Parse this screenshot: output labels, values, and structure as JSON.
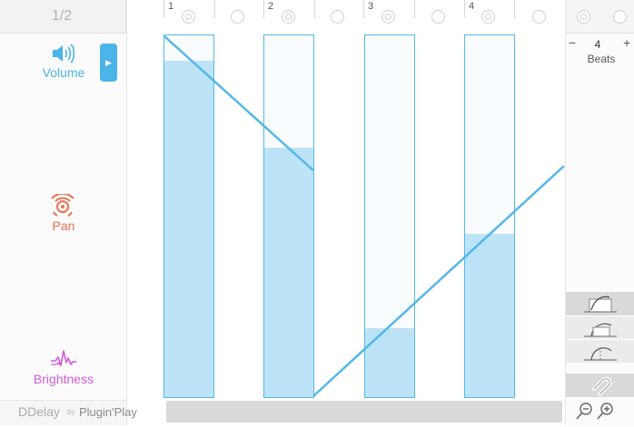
{
  "page_indicator": "1/2",
  "params": {
    "volume": "Volume",
    "pan": "Pan",
    "brightness": "Brightness"
  },
  "logo": {
    "main": "DDelay",
    "by": "by",
    "brand": "Plugin'Play"
  },
  "beats": {
    "minus": "−",
    "value": "4",
    "plus": "+",
    "label": "Beats"
  },
  "columns": [
    {
      "num": "1",
      "level": 0.93
    },
    {
      "num": "2",
      "level": 0.69
    },
    {
      "num": "3",
      "level": 0.19
    },
    {
      "num": "4",
      "level": 0.45
    }
  ],
  "colors": {
    "volume": "#4bb4e8",
    "pan": "#ec6f4e",
    "brightness": "#d35ad8",
    "bar_fill": "#bde3f7",
    "line": "#54b7e6"
  }
}
